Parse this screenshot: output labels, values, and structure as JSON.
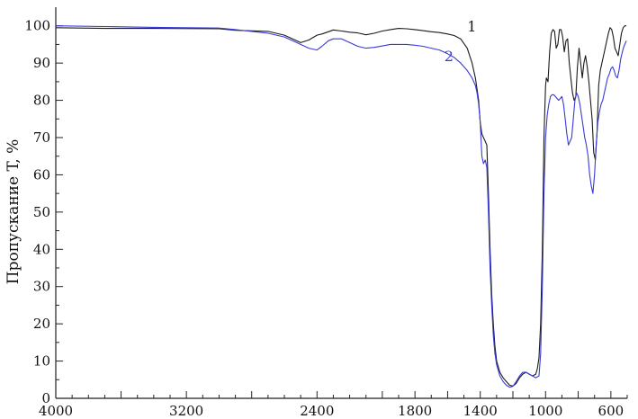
{
  "chart_data": {
    "type": "line",
    "title": "",
    "xlabel": "",
    "ylabel": "Пропускание T, %",
    "xlim": [
      4000,
      500
    ],
    "ylim": [
      0,
      105
    ],
    "x_reversed": true,
    "grid": false,
    "x_ticks": [
      4000,
      3200,
      2400,
      1800,
      1400,
      1000,
      600
    ],
    "x_tick_labels": [
      "4000",
      "3200",
      "2400",
      "1800",
      "1400",
      "1000",
      "600"
    ],
    "y_ticks": [
      0,
      10,
      20,
      30,
      40,
      50,
      60,
      70,
      80,
      90,
      100
    ],
    "y_tick_labels": [
      "0",
      "10",
      "20",
      "30",
      "40",
      "50",
      "60",
      "70",
      "80",
      "90",
      "100"
    ],
    "series": [
      {
        "name": "1",
        "color": "#1a1a1a",
        "x": [
          4000,
          3700,
          3400,
          3000,
          2900,
          2700,
          2600,
          2550,
          2500,
          2450,
          2400,
          2370,
          2330,
          2300,
          2250,
          2200,
          2150,
          2100,
          2050,
          2000,
          1950,
          1900,
          1850,
          1800,
          1750,
          1700,
          1650,
          1600,
          1560,
          1520,
          1480,
          1450,
          1430,
          1410,
          1400,
          1390,
          1380,
          1370,
          1360,
          1350,
          1340,
          1330,
          1320,
          1310,
          1300,
          1280,
          1260,
          1240,
          1220,
          1200,
          1180,
          1160,
          1140,
          1120,
          1100,
          1080,
          1060,
          1050,
          1040,
          1030,
          1020,
          1010,
          1000,
          995,
          985,
          975,
          965,
          955,
          945,
          935,
          925,
          915,
          905,
          895,
          885,
          875,
          865,
          855,
          845,
          835,
          825,
          815,
          805,
          795,
          785,
          775,
          765,
          755,
          745,
          735,
          725,
          715,
          705,
          695,
          685,
          675,
          665,
          655,
          645,
          635,
          625,
          615,
          605,
          595,
          585,
          575,
          565,
          555,
          545,
          535,
          525,
          515,
          505
        ],
        "y": [
          99.5,
          99.3,
          99.3,
          99.2,
          98.8,
          98.5,
          97.5,
          96.5,
          95.5,
          96.2,
          97.5,
          97.8,
          98.4,
          98.9,
          98.6,
          98.3,
          98.1,
          97.6,
          98.0,
          98.6,
          99.0,
          99.3,
          99.2,
          99.0,
          98.7,
          98.4,
          98.2,
          97.8,
          97.4,
          96.5,
          94.0,
          90.0,
          86.0,
          80.0,
          74.0,
          71.0,
          70.0,
          69.0,
          68.0,
          55.0,
          40.0,
          28.0,
          20.0,
          14.0,
          10.0,
          7.0,
          5.5,
          4.5,
          3.5,
          3.3,
          4.0,
          5.5,
          6.5,
          7.0,
          6.5,
          6.0,
          6.5,
          8.0,
          11.0,
          20.0,
          40.0,
          70.0,
          84.0,
          86.0,
          85.0,
          93.0,
          98.0,
          99.0,
          98.5,
          94.0,
          95.0,
          99.0,
          99.0,
          97.0,
          93.0,
          96.0,
          96.5,
          90.0,
          86.0,
          82.0,
          80.0,
          81.0,
          89.0,
          94.0,
          90.0,
          86.0,
          90.0,
          92.0,
          89.0,
          85.0,
          80.0,
          75.0,
          66.0,
          64.0,
          71.0,
          84.0,
          88.0,
          90.0,
          92.0,
          94.0,
          96.0,
          98.0,
          99.5,
          99.0,
          97.0,
          94.0,
          93.0,
          92.0,
          95.0,
          98.0,
          99.5,
          100.0,
          100.0
        ]
      },
      {
        "name": "2",
        "color": "#3a3ad8",
        "x": [
          4000,
          3700,
          3400,
          3000,
          2900,
          2700,
          2600,
          2550,
          2500,
          2450,
          2400,
          2370,
          2330,
          2300,
          2250,
          2200,
          2150,
          2100,
          2050,
          2000,
          1950,
          1900,
          1850,
          1800,
          1750,
          1700,
          1650,
          1600,
          1560,
          1520,
          1480,
          1450,
          1430,
          1420,
          1410,
          1400,
          1390,
          1380,
          1370,
          1360,
          1350,
          1340,
          1330,
          1320,
          1310,
          1300,
          1280,
          1260,
          1240,
          1220,
          1200,
          1180,
          1160,
          1140,
          1120,
          1100,
          1080,
          1060,
          1050,
          1040,
          1030,
          1020,
          1010,
          1000,
          990,
          980,
          970,
          960,
          950,
          940,
          930,
          920,
          910,
          900,
          890,
          880,
          870,
          860,
          850,
          840,
          830,
          820,
          810,
          800,
          790,
          780,
          770,
          760,
          750,
          740,
          730,
          720,
          710,
          700,
          690,
          680,
          670,
          660,
          650,
          640,
          630,
          620,
          610,
          600,
          590,
          580,
          570,
          560,
          550,
          540,
          530,
          520,
          510,
          505
        ],
        "y": [
          100.0,
          99.8,
          99.6,
          99.4,
          99.0,
          98.0,
          97.0,
          96.0,
          95.0,
          94.0,
          93.5,
          94.5,
          96.0,
          96.5,
          96.5,
          95.5,
          94.5,
          94.0,
          94.2,
          94.6,
          95.0,
          95.0,
          95.0,
          94.8,
          94.5,
          94.0,
          93.5,
          92.5,
          91.5,
          90.0,
          88.0,
          86.0,
          84.0,
          82.0,
          79.0,
          74.0,
          65.0,
          63.0,
          64.0,
          62.0,
          50.0,
          35.0,
          25.0,
          17.0,
          12.0,
          9.0,
          6.0,
          4.5,
          3.5,
          3.0,
          3.2,
          4.5,
          6.0,
          7.0,
          7.0,
          6.5,
          6.0,
          5.5,
          5.8,
          6.0,
          12.0,
          30.0,
          55.0,
          70.0,
          76.0,
          79.0,
          81.0,
          81.5,
          81.5,
          81.0,
          80.5,
          80.0,
          80.5,
          81.0,
          79.0,
          75.0,
          71.0,
          68.0,
          69.0,
          70.0,
          75.0,
          80.0,
          82.0,
          81.0,
          79.0,
          76.0,
          73.0,
          70.0,
          68.0,
          65.0,
          60.0,
          57.0,
          55.0,
          60.0,
          68.0,
          74.0,
          77.0,
          79.0,
          80.0,
          82.0,
          84.0,
          86.0,
          87.0,
          88.5,
          89.0,
          88.0,
          86.5,
          86.0,
          88.0,
          91.0,
          93.0,
          94.5,
          95.5,
          96.0
        ]
      }
    ],
    "series_labels": [
      {
        "text": "1",
        "x": 1480,
        "y": 98.5
      },
      {
        "text": "2",
        "x": 1620,
        "y": 90.5
      }
    ]
  }
}
